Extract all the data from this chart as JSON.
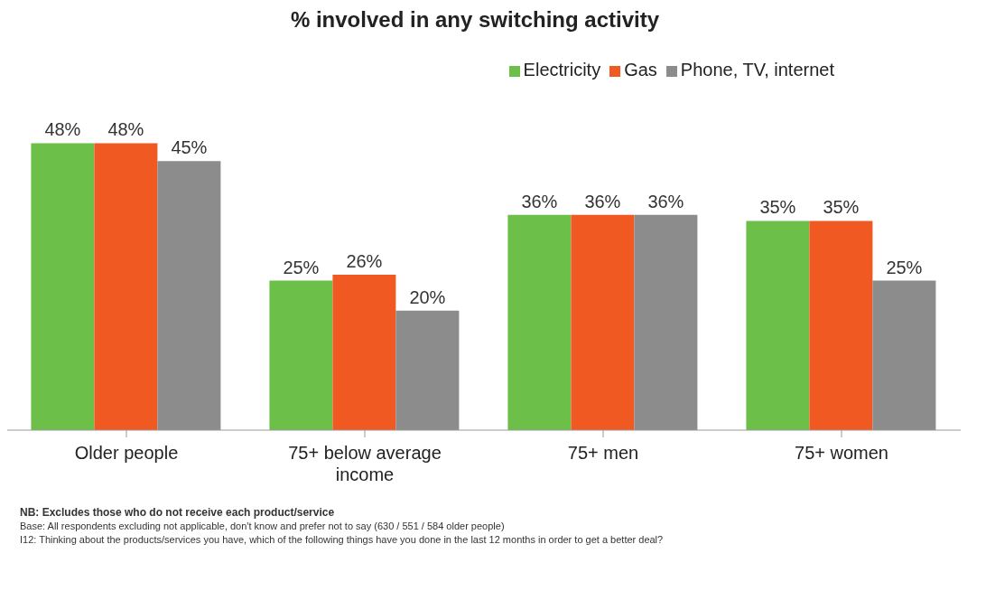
{
  "chart_data": {
    "type": "bar",
    "title": "% involved in any switching activity",
    "categories": [
      "Older people",
      "75+ below average income",
      "75+ men",
      "75+ women"
    ],
    "series": [
      {
        "name": "Electricity",
        "color": "#6cc04a",
        "values": [
          48,
          25,
          36,
          35
        ],
        "value_labels": [
          "48%",
          "25%",
          "36%",
          "35%"
        ]
      },
      {
        "name": "Gas",
        "color": "#f05a22",
        "values": [
          48,
          26,
          36,
          35
        ],
        "value_labels": [
          "48%",
          "26%",
          "36%",
          "35%"
        ]
      },
      {
        "name": "Phone, TV, internet",
        "color": "#8c8c8c",
        "values": [
          45,
          20,
          36,
          25
        ],
        "value_labels": [
          "45%",
          "20%",
          "36%",
          "25%"
        ]
      }
    ],
    "legend": "top right",
    "grid": false,
    "annotations": [
      "NB: Excludes those who do not receive each product/service",
      "Base: All respondents  excluding not applicable, don't know and prefer  not to say (630 / 551 / 584 older people)",
      "I12: Thinking about the products/services you have, which of the following things have you done in the last 12 months in order to get a better deal?"
    ]
  }
}
